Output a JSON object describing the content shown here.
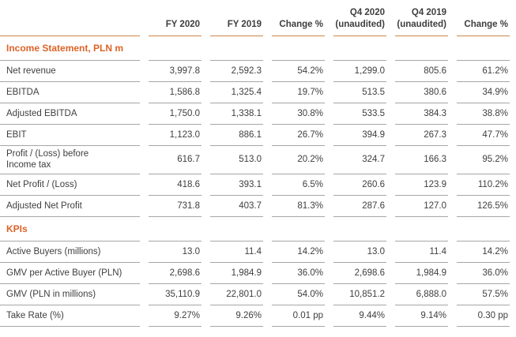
{
  "header": {
    "columns": [
      "FY 2020",
      "FY 2019",
      "Change %",
      "Q4 2020\n(unaudited)",
      "Q4 2019\n(unaudited)",
      "Change %"
    ]
  },
  "sections": [
    {
      "title": "Income Statement, PLN m",
      "rows": [
        {
          "label": "Net revenue",
          "values": [
            "3,997.8",
            "2,592.3",
            "54.2%",
            "1,299.0",
            "805.6",
            "61.2%"
          ]
        },
        {
          "label": "EBITDA",
          "values": [
            "1,586.8",
            "1,325.4",
            "19.7%",
            "513.5",
            "380.6",
            "34.9%"
          ]
        },
        {
          "label": "Adjusted EBITDA",
          "values": [
            "1,750.0",
            "1,338.1",
            "30.8%",
            "533.5",
            "384.3",
            "38.8%"
          ]
        },
        {
          "label": "EBIT",
          "values": [
            "1,123.0",
            "886.1",
            "26.7%",
            "394.9",
            "267.3",
            "47.7%"
          ]
        },
        {
          "label": "Profit / (Loss) before\nIncome tax",
          "values": [
            "616.7",
            "513.0",
            "20.2%",
            "324.7",
            "166.3",
            "95.2%"
          ]
        },
        {
          "label": "Net Profit / (Loss)",
          "values": [
            "418.6",
            "393.1",
            "6.5%",
            "260.6",
            "123.9",
            "110.2%"
          ]
        },
        {
          "label": "Adjusted Net Profit",
          "values": [
            "731.8",
            "403.7",
            "81.3%",
            "287.6",
            "127.0",
            "126.5%"
          ]
        }
      ]
    },
    {
      "title": "KPIs",
      "rows": [
        {
          "label": "Active Buyers (millions)",
          "values": [
            "13.0",
            "11.4",
            "14.2%",
            "13.0",
            "11.4",
            "14.2%"
          ]
        },
        {
          "label": "GMV per Active Buyer (PLN)",
          "values": [
            "2,698.6",
            "1,984.9",
            "36.0%",
            "2,698.6",
            "1,984.9",
            "36.0%"
          ]
        },
        {
          "label": "GMV (PLN in millions)",
          "values": [
            "35,110.9",
            "22,801.0",
            "54.0%",
            "10,851.2",
            "6,888.0",
            "57.5%"
          ]
        },
        {
          "label": "Take Rate (%)",
          "values": [
            "9.27%",
            "9.26%",
            "0.01 pp",
            "9.44%",
            "9.14%",
            "0.30 pp"
          ]
        }
      ]
    }
  ],
  "colors": {
    "accent_orange_text": "#dc6327",
    "header_rule_orange": "#ce8547",
    "row_rule_gray": "#a6a6a6",
    "body_text": "#3e3e3e"
  }
}
